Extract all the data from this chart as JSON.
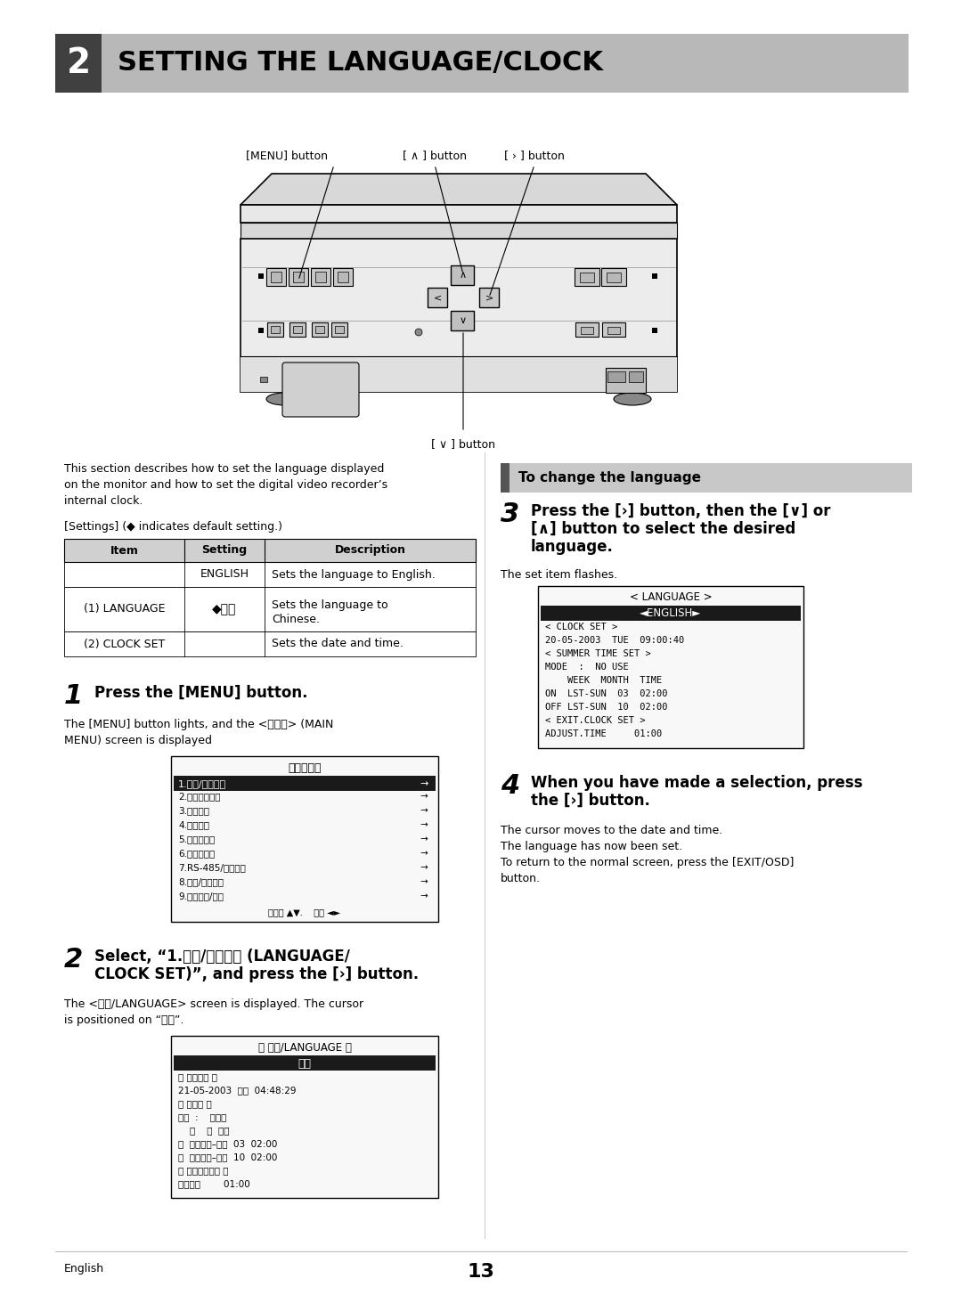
{
  "page_bg": "#ffffff",
  "header_bg": "#b8b8b8",
  "header_dark_bg": "#404040",
  "header_num": "2",
  "header_title": "SETTING THE LANGUAGE/CLOCK",
  "footer_text": "English",
  "footer_page": "13",
  "intro_text_1": "This section describes how to set the language displayed",
  "intro_text_2": "on the monitor and how to set the digital video recorder’s",
  "intro_text_3": "internal clock.",
  "settings_note": "[Settings] (◆ indicates default setting.)",
  "table_headers": [
    "Item",
    "Setting",
    "Description"
  ],
  "table_row0": [
    "",
    "ENGLISH",
    "Sets the language to English."
  ],
  "table_row1_item": "(1) LANGUAGE",
  "table_row1_setting": "◆中文",
  "table_row1_desc1": "Sets the language to",
  "table_row1_desc2": "Chinese.",
  "table_row2": [
    "(2) CLOCK SET",
    "",
    "Sets the date and time."
  ],
  "step1_num": "1",
  "step1_title": "Press the [MENU] button.",
  "step1_body1": "The [MENU] button lights, and the <主菜单> (MAIN",
  "step1_body2": "MENU) screen is displayed",
  "menu_screen_title": "＜主菜单＞",
  "menu_item0_text": "1.语言/时钟设置",
  "menu_items_rest": [
    "2.屏幕分割菜单",
    "3.存储模式",
    "4.显示设置",
    "5.报警器设置",
    "6.安全锁设置",
    "7.RS-485/网络设置",
    "8.断电/使用时间",
    "9.菜单上传/下载"
  ],
  "menu_footer": "移动按 ▲▼.    退出 ◄►",
  "step2_num": "2",
  "step2_title1": "Select, “1.语言/时钟设置 (LANGUAGE/",
  "step2_title2": "CLOCK SET)”, and press the [›] button.",
  "step2_body1": "The <语言/LANGUAGE> screen is displayed. The cursor",
  "step2_body2": "is positioned on “中文”.",
  "lang_box_title": "＜ 语言/LANGUAGE ＞",
  "lang_box_hl": "中文",
  "lang_box_lines": [
    "＜ 时钟设置 ＞",
    "21-05-2003  周三  04:48:29",
    "＜ 夏时制 ＞",
    "格式  :    不使用",
    "    周    月  时间",
    "开  最后一周–周日  03  02:00",
    "关  最后一周–周日  10  02:00",
    "＜ 外部时钟设置 ＞",
    "调整时间        01:00"
  ],
  "to_change_title": "To change the language",
  "step3_num": "3",
  "step3_title1": "Press the [›] button, then the [∨] or",
  "step3_title2": "[∧] button to select the desired",
  "step3_title3": "language.",
  "step3_body": "The set item flashes.",
  "lang2_box_title": "< LANGUAGE >",
  "lang2_box_hl": "◄ENGLISH►",
  "lang2_box_lines": [
    "< CLOCK SET >",
    "20-05-2003  TUE  09:00:40",
    "< SUMMER TIME SET >",
    "MODE  :  NO USE",
    "    WEEK  MONTH  TIME",
    "ON  LST-SUN  03  02:00",
    "OFF LST-SUN  10  02:00",
    "< EXIT.CLOCK SET >",
    "ADJUST.TIME     01:00"
  ],
  "step4_num": "4",
  "step4_title1": "When you have made a selection, press",
  "step4_title2": "the [›] button.",
  "step4_body1": "The cursor moves to the date and time.",
  "step4_body2": "The language has now been set.",
  "step4_body3": "To return to the normal screen, press the [EXIT/OSD]",
  "step4_body4": "button."
}
